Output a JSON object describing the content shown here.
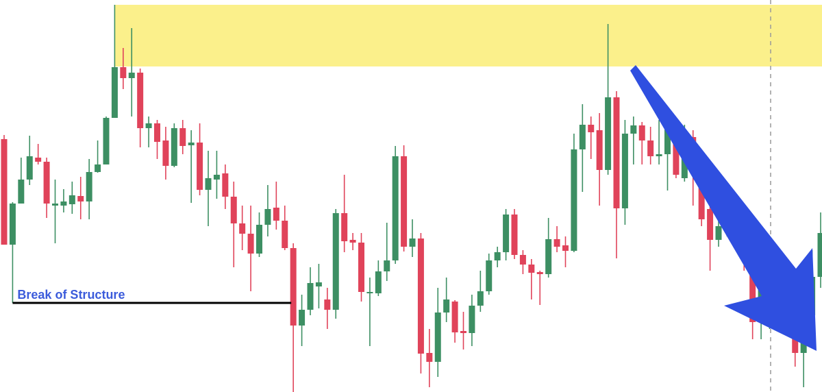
{
  "chart_data": {
    "type": "candlestick",
    "annotation": "Break of Structure",
    "ylim": [
      0,
      572
    ],
    "zone": [
      475,
      565
    ],
    "bos_level": 130,
    "up_color": "#3d8f63",
    "down_color": "#e0435a",
    "zone_color": "#fbf08b",
    "open": [
      369,
      215,
      275,
      310,
      342,
      336,
      272,
      272,
      274,
      286,
      278,
      321,
      332,
      400,
      474,
      458,
      466,
      385,
      392,
      367,
      330,
      385,
      360,
      364,
      295,
      310,
      319,
      285,
      246,
      231,
      202,
      244,
      269,
      250,
      210,
      97,
      120,
      154,
      135,
      120,
      261,
      222,
      218,
      144,
      144,
      176,
      192,
      344,
      212,
      224,
      57,
      44,
      116,
      132,
      89,
      86,
      126,
      147,
      192,
      204,
      259,
      200,
      186,
      175,
      172,
      223,
      214,
      206,
      354,
      390,
      382,
      324,
      430,
      268,
      377,
      389,
      367,
      344,
      347,
      389,
      312,
      372,
      327,
      267,
      222,
      242,
      256,
      242,
      200,
      102,
      149,
      162,
      179,
      164,
      57,
      112,
      168
    ],
    "high": [
      375,
      277,
      342,
      374,
      362,
      342,
      310,
      296,
      307,
      314,
      340,
      367,
      402,
      565,
      502,
      531,
      472,
      402,
      397,
      387,
      392,
      397,
      382,
      392,
      352,
      352,
      332,
      307,
      272,
      272,
      262,
      302,
      307,
      272,
      217,
      142,
      182,
      187,
      152,
      267,
      317,
      232,
      232,
      167,
      192,
      247,
      359,
      360,
      252,
      232,
      92,
      152,
      167,
      134,
      117,
      142,
      177,
      202,
      212,
      267,
      267,
      207,
      194,
      177,
      254,
      242,
      227,
      377,
      420,
      402,
      407,
      537,
      439,
      397,
      402,
      394,
      387,
      397,
      394,
      397,
      390,
      382,
      342,
      282,
      262,
      267,
      262,
      252,
      207,
      162,
      177,
      187,
      187,
      177,
      127,
      207,
      262
    ],
    "low": [
      215,
      130,
      275,
      302,
      332,
      254,
      217,
      262,
      260,
      252,
      252,
      320,
      332,
      400,
      442,
      402,
      357,
      357,
      340,
      310,
      328,
      347,
      276,
      287,
      242,
      282,
      267,
      182,
      207,
      147,
      197,
      227,
      237,
      207,
      0,
      67,
      112,
      122,
      92,
      107,
      204,
      207,
      132,
      67,
      140,
      162,
      187,
      205,
      197,
      27,
      7,
      22,
      102,
      72,
      62,
      67,
      117,
      142,
      182,
      192,
      194,
      172,
      135,
      127,
      167,
      204,
      182,
      204,
      292,
      340,
      272,
      317,
      195,
      244,
      332,
      332,
      332,
      332,
      294,
      312,
      307,
      272,
      242,
      177,
      212,
      227,
      227,
      177,
      77,
      77,
      92,
      132,
      152,
      37,
      7,
      102,
      152
    ],
    "close": [
      215,
      275,
      310,
      344,
      336,
      275,
      275,
      278,
      287,
      278,
      321,
      332,
      400,
      474,
      458,
      466,
      385,
      392,
      365,
      330,
      385,
      359,
      364,
      295,
      312,
      317,
      285,
      246,
      231,
      202,
      244,
      267,
      250,
      210,
      97,
      120,
      159,
      160,
      120,
      261,
      220,
      218,
      146,
      146,
      176,
      192,
      344,
      212,
      224,
      56,
      44,
      116,
      135,
      87,
      86,
      126,
      147,
      192,
      204,
      259,
      200,
      186,
      174,
      172,
      223,
      212,
      206,
      354,
      390,
      379,
      324,
      430,
      268,
      377,
      389,
      367,
      344,
      347,
      387,
      317,
      372,
      327,
      252,
      222,
      242,
      257,
      240,
      202,
      102,
      149,
      164,
      179,
      162,
      57,
      112,
      168,
      232
    ]
  }
}
